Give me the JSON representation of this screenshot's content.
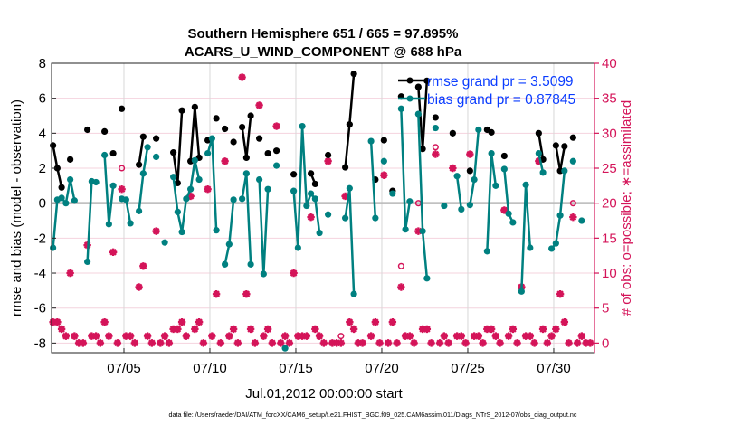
{
  "chart_data": {
    "type": "line",
    "title": [
      "Southern Hemisphere 651 / 665 = 97.895%",
      "ACARS_U_WIND_COMPONENT @ 688 hPa"
    ],
    "xlabel": "Jul.01,2012 00:00:00 start",
    "ylabel": "rmse and bias (model - observation)",
    "y2label": "# of obs: o=possible; ∗=assimilated",
    "footer": "data file: /Users/raeder/DAI/ATM_forcXX/CAM6_setup/f.e21.FHIST_BGC.f09_025.CAM6assim.011/Diags_NTrS_2012-07/obs_diag_output.nc",
    "x_unit": "days since Jul.01,2012 00:00",
    "xlim": [
      -0.21,
      31.37
    ],
    "ylim": [
      -8.55,
      8
    ],
    "y2lim": [
      -1.375,
      40
    ],
    "xticks": [
      {
        "value": 4,
        "label": "07/05"
      },
      {
        "value": 9,
        "label": "07/10"
      },
      {
        "value": 14,
        "label": "07/15"
      },
      {
        "value": 19,
        "label": "07/20"
      },
      {
        "value": 24,
        "label": "07/25"
      },
      {
        "value": 29,
        "label": "07/30"
      }
    ],
    "yticks": [
      "-8",
      "-6",
      "-4",
      "-2",
      "0",
      "2",
      "4",
      "6",
      "8"
    ],
    "y2ticks": [
      "0",
      "5",
      "10",
      "15",
      "20",
      "25",
      "30",
      "35",
      "40"
    ],
    "grid": true,
    "legend": {
      "placement": "top-right",
      "entries": [
        {
          "label": "rmse grand pr = 3.5099",
          "series": "rmse"
        },
        {
          "label": "bias grand pr = 0.87845",
          "series": "bias"
        }
      ]
    },
    "colors": {
      "rmse": "#000000",
      "bias": "#008080",
      "obs": "#d41459",
      "legend_text": "#0a3cff",
      "grid": "#f4d3de",
      "zero": "#b8b8b8"
    },
    "series": [
      {
        "name": "rmse",
        "segments": [
          [
            [
              -0.125,
              3.3
            ],
            [
              0.125,
              2.0
            ],
            [
              0.375,
              0.9
            ]
          ],
          [
            [
              0.875,
              2.5
            ]
          ],
          [
            [
              1.875,
              4.2
            ]
          ],
          [
            [
              2.875,
              4.1
            ]
          ],
          [
            [
              3.375,
              2.85
            ]
          ],
          [
            [
              3.875,
              5.4
            ]
          ],
          [
            [
              4.875,
              2.2
            ],
            [
              5.125,
              3.8
            ]
          ],
          [
            [
              5.875,
              3.7
            ]
          ],
          [
            [
              6.875,
              2.9
            ],
            [
              7.125,
              1.15
            ],
            [
              7.375,
              5.3
            ]
          ],
          [
            [
              7.875,
              2.4
            ],
            [
              8.125,
              5.5
            ],
            [
              8.375,
              2.6
            ]
          ],
          [
            [
              8.875,
              3.6
            ]
          ],
          [
            [
              9.375,
              4.85
            ]
          ],
          [
            [
              9.875,
              4.25
            ]
          ],
          [
            [
              10.375,
              3.5
            ]
          ],
          [
            [
              10.875,
              4.35
            ],
            [
              11.125,
              2.6
            ],
            [
              11.375,
              5.0
            ]
          ],
          [
            [
              11.875,
              3.7
            ]
          ],
          [
            [
              12.375,
              2.85
            ]
          ],
          [
            [
              12.875,
              3.0
            ]
          ],
          [
            [
              13.875,
              1.65
            ]
          ],
          [
            [
              14.875,
              1.7
            ],
            [
              15.125,
              1.1
            ]
          ],
          [
            [
              15.875,
              2.75
            ]
          ],
          [
            [
              16.875,
              2.05
            ],
            [
              17.125,
              4.5
            ],
            [
              17.375,
              7.4
            ]
          ],
          [
            [
              18.625,
              1.35
            ]
          ],
          [
            [
              19.125,
              3.6
            ]
          ],
          [
            [
              19.625,
              0.7
            ]
          ],
          [
            [
              20.125,
              6.1
            ]
          ],
          [
            [
              21.125,
              6.65
            ],
            [
              21.375,
              3.1
            ],
            [
              21.625,
              7.0
            ]
          ],
          [
            [
              22.125,
              4.9
            ]
          ],
          [
            [
              23.125,
              4.0
            ]
          ],
          [
            [
              24.125,
              1.85
            ]
          ],
          [
            [
              25.125,
              4.2
            ],
            [
              25.375,
              4.05
            ]
          ],
          [
            [
              26.125,
              2.7
            ]
          ],
          [
            [
              28.125,
              4.0
            ],
            [
              28.375,
              2.5
            ]
          ],
          [
            [
              29.125,
              3.3
            ],
            [
              29.375,
              1.85
            ],
            [
              29.625,
              3.25
            ]
          ],
          [
            [
              30.125,
              3.75
            ]
          ]
        ]
      },
      {
        "name": "bias",
        "segments": [
          [
            [
              -0.125,
              -2.55
            ],
            [
              0.125,
              0.2
            ],
            [
              0.375,
              0.3
            ],
            [
              0.625,
              0.0
            ],
            [
              0.875,
              1.35
            ],
            [
              1.125,
              0.15
            ]
          ],
          [
            [
              1.875,
              -3.35
            ],
            [
              2.125,
              1.25
            ],
            [
              2.375,
              1.2
            ]
          ],
          [
            [
              2.875,
              2.75
            ],
            [
              3.125,
              -1.2
            ],
            [
              3.375,
              1.0
            ]
          ],
          [
            [
              3.875,
              0.25
            ],
            [
              4.125,
              0.2
            ],
            [
              4.375,
              -1.15
            ]
          ],
          [
            [
              4.875,
              -0.45
            ],
            [
              5.125,
              1.7
            ],
            [
              5.375,
              3.2
            ]
          ],
          [
            [
              5.875,
              2.65
            ]
          ],
          [
            [
              6.375,
              -2.25
            ]
          ],
          [
            [
              6.875,
              1.5
            ],
            [
              7.125,
              -0.5
            ],
            [
              7.375,
              -1.65
            ],
            [
              7.625,
              0.25
            ],
            [
              7.875,
              0.8
            ],
            [
              8.125,
              2.45
            ],
            [
              8.375,
              1.35
            ]
          ],
          [
            [
              8.875,
              2.85
            ],
            [
              9.125,
              3.7
            ],
            [
              9.375,
              -1.55
            ]
          ],
          [
            [
              9.875,
              -3.5
            ],
            [
              10.125,
              -2.35
            ],
            [
              10.375,
              0.2
            ]
          ],
          [
            [
              10.875,
              0.25
            ],
            [
              11.125,
              1.7
            ],
            [
              11.375,
              -3.5
            ]
          ],
          [
            [
              11.875,
              1.35
            ],
            [
              12.125,
              -4.05
            ],
            [
              12.375,
              0.8
            ]
          ],
          [
            [
              12.875,
              2.15
            ]
          ],
          [
            [
              13.375,
              -8.3
            ]
          ],
          [
            [
              13.875,
              0.7
            ],
            [
              14.125,
              -2.55
            ],
            [
              14.375,
              4.4
            ],
            [
              14.625,
              -0.15
            ],
            [
              14.875,
              0.55
            ],
            [
              15.125,
              0.25
            ],
            [
              15.375,
              -1.7
            ]
          ],
          [
            [
              15.875,
              -0.65
            ]
          ],
          [
            [
              16.875,
              -0.85
            ],
            [
              17.125,
              0.85
            ],
            [
              17.375,
              -5.2
            ]
          ],
          [
            [
              18.375,
              3.55
            ],
            [
              18.625,
              -0.85
            ]
          ],
          [
            [
              19.125,
              2.4
            ]
          ],
          [
            [
              19.625,
              0.55
            ]
          ],
          [
            [
              20.125,
              5.4
            ],
            [
              20.375,
              -1.5
            ],
            [
              20.625,
              0.1
            ]
          ],
          [
            [
              21.125,
              5.1
            ],
            [
              21.375,
              -1.6
            ],
            [
              21.625,
              -4.3
            ]
          ],
          [
            [
              22.125,
              4.3
            ]
          ],
          [
            [
              22.625,
              -0.15
            ]
          ],
          [
            [
              23.375,
              1.55
            ],
            [
              23.625,
              -0.35
            ]
          ],
          [
            [
              24.125,
              -0.1
            ],
            [
              24.375,
              1.35
            ],
            [
              24.625,
              4.2
            ]
          ],
          [
            [
              25.125,
              -2.75
            ],
            [
              25.375,
              2.85
            ],
            [
              25.625,
              1.0
            ]
          ],
          [
            [
              26.125,
              1.95
            ],
            [
              26.375,
              -0.6
            ],
            [
              26.625,
              -1.1
            ]
          ],
          [
            [
              27.125,
              -5.05
            ],
            [
              27.375,
              1.05
            ],
            [
              27.625,
              -2.55
            ]
          ],
          [
            [
              28.125,
              2.85
            ],
            [
              28.375,
              1.75
            ]
          ],
          [
            [
              28.875,
              -2.6
            ],
            [
              29.125,
              -2.3
            ],
            [
              29.375,
              -0.7
            ],
            [
              29.625,
              1.85
            ]
          ],
          [
            [
              30.125,
              2.4
            ]
          ],
          [
            [
              30.625,
              -1.0
            ]
          ]
        ]
      }
    ],
    "obs_counts": {
      "t_start": -0.125,
      "dt_days": 0.25,
      "possible": [
        3,
        3,
        2,
        1,
        10,
        1,
        0,
        0,
        14,
        1,
        1,
        0,
        3,
        1,
        13,
        0,
        25,
        1,
        1,
        0,
        8,
        11,
        1,
        0,
        16,
        0,
        1,
        0,
        2,
        2,
        3,
        1,
        21,
        2,
        3,
        0,
        22,
        1,
        7,
        0,
        26,
        1,
        2,
        0,
        38,
        7,
        2,
        0,
        34,
        1,
        2,
        0,
        31,
        0,
        1,
        0,
        10,
        1,
        1,
        1,
        18,
        2,
        1,
        0,
        26,
        0,
        0,
        1,
        21,
        3,
        2,
        0,
        0,
        null,
        1,
        3,
        0,
        24,
        0,
        3,
        0,
        11,
        1,
        1,
        0,
        20,
        2,
        2,
        0,
        28,
        0,
        1,
        0,
        25,
        1,
        1,
        0,
        27,
        1,
        1,
        0,
        2,
        2,
        1,
        0,
        19,
        1,
        2,
        0,
        8,
        1,
        1,
        0,
        26,
        2,
        0,
        1,
        2,
        7,
        3,
        0,
        20,
        0,
        1,
        0,
        0
      ],
      "assimilated": [
        3,
        3,
        2,
        1,
        10,
        1,
        0,
        0,
        14,
        1,
        1,
        0,
        3,
        1,
        13,
        0,
        22,
        1,
        1,
        0,
        8,
        11,
        1,
        0,
        16,
        0,
        1,
        0,
        2,
        2,
        3,
        1,
        21,
        2,
        3,
        0,
        22,
        1,
        7,
        0,
        26,
        1,
        2,
        0,
        38,
        7,
        2,
        0,
        34,
        1,
        2,
        0,
        31,
        0,
        1,
        0,
        10,
        1,
        1,
        1,
        18,
        2,
        1,
        0,
        26,
        0,
        0,
        0,
        21,
        3,
        2,
        0,
        0,
        null,
        1,
        3,
        0,
        24,
        0,
        3,
        0,
        8,
        1,
        1,
        0,
        16,
        2,
        2,
        0,
        27,
        0,
        1,
        0,
        25,
        1,
        1,
        0,
        27,
        1,
        1,
        0,
        2,
        2,
        1,
        0,
        19,
        1,
        2,
        0,
        8,
        1,
        1,
        0,
        26,
        2,
        0,
        1,
        2,
        7,
        3,
        0,
        18,
        0,
        1,
        0,
        0
      ]
    }
  }
}
